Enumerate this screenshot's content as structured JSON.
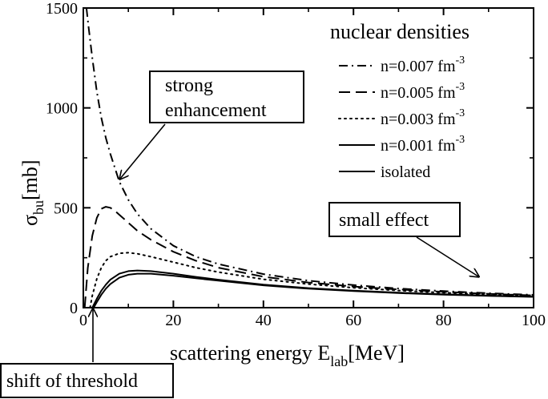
{
  "chart_data": {
    "type": "line",
    "xlabel": "scattering energy E",
    "xlabel_sub": "lab",
    "xlabel_unit": "[MeV]",
    "ylabel_main": "σ",
    "ylabel_sub": "bu",
    "ylabel_unit": "[mb]",
    "xlim": [
      0,
      100
    ],
    "ylim": [
      0,
      1500
    ],
    "xticks": [
      0,
      20,
      40,
      60,
      80,
      100
    ],
    "yticks": [
      0,
      500,
      1000,
      1500
    ],
    "grid": false,
    "legend": {
      "title": "nuclear densities",
      "placement": "top-right",
      "unit": "fm",
      "exponent": "-3"
    },
    "series": [
      {
        "name": "n=0.007 fm",
        "style": "dash-dot",
        "x": [
          0.7,
          1.2,
          2,
          3,
          4,
          5,
          6,
          8,
          10,
          12,
          15,
          20,
          25,
          30,
          40,
          50,
          60,
          70,
          80,
          90,
          100
        ],
        "y": [
          1500,
          1400,
          1250,
          1080,
          950,
          850,
          770,
          630,
          540,
          470,
          395,
          310,
          255,
          218,
          168,
          135,
          113,
          96,
          83,
          72,
          64
        ]
      },
      {
        "name": "n=0.005 fm",
        "style": "dashed",
        "x": [
          0.3,
          1,
          2,
          3,
          4,
          5,
          6,
          7,
          8,
          10,
          12,
          15,
          20,
          25,
          30,
          40,
          50,
          60,
          70,
          80,
          90,
          100
        ],
        "y": [
          0,
          200,
          360,
          450,
          495,
          505,
          500,
          485,
          465,
          425,
          385,
          340,
          280,
          235,
          200,
          155,
          126,
          106,
          91,
          79,
          69,
          61
        ]
      },
      {
        "name": "n=0.003 fm",
        "style": "dotted",
        "x": [
          1.5,
          2,
          3,
          4,
          5,
          6,
          8,
          10,
          12,
          15,
          20,
          25,
          30,
          40,
          50,
          60,
          70,
          80,
          90,
          100
        ],
        "y": [
          0,
          60,
          145,
          200,
          235,
          255,
          272,
          275,
          270,
          255,
          228,
          200,
          178,
          142,
          118,
          100,
          86,
          75,
          66,
          58
        ]
      },
      {
        "name": "n=0.001 fm",
        "style": "solid",
        "x": [
          2,
          3,
          4,
          5,
          6,
          8,
          10,
          12,
          15,
          20,
          25,
          30,
          40,
          50,
          60,
          70,
          80,
          90,
          100
        ],
        "y": [
          0,
          45,
          85,
          115,
          140,
          170,
          183,
          186,
          183,
          170,
          154,
          140,
          115,
          98,
          85,
          75,
          67,
          60,
          55
        ]
      },
      {
        "name": "isolated",
        "style": "solid",
        "x": [
          2.3,
          3,
          4,
          5,
          6,
          8,
          10,
          12,
          15,
          20,
          25,
          30,
          40,
          50,
          60,
          70,
          80,
          90,
          100
        ],
        "y": [
          0,
          28,
          65,
          95,
          118,
          150,
          165,
          170,
          170,
          160,
          147,
          135,
          112,
          95,
          83,
          73,
          65,
          59,
          54
        ]
      }
    ],
    "annotations": [
      {
        "name": "strong-enhancement",
        "lines": [
          "strong",
          "enhancement"
        ]
      },
      {
        "name": "small-effect",
        "lines": [
          "small effect"
        ]
      },
      {
        "name": "shift-of-threshold",
        "lines": [
          "shift of threshold"
        ]
      }
    ]
  }
}
